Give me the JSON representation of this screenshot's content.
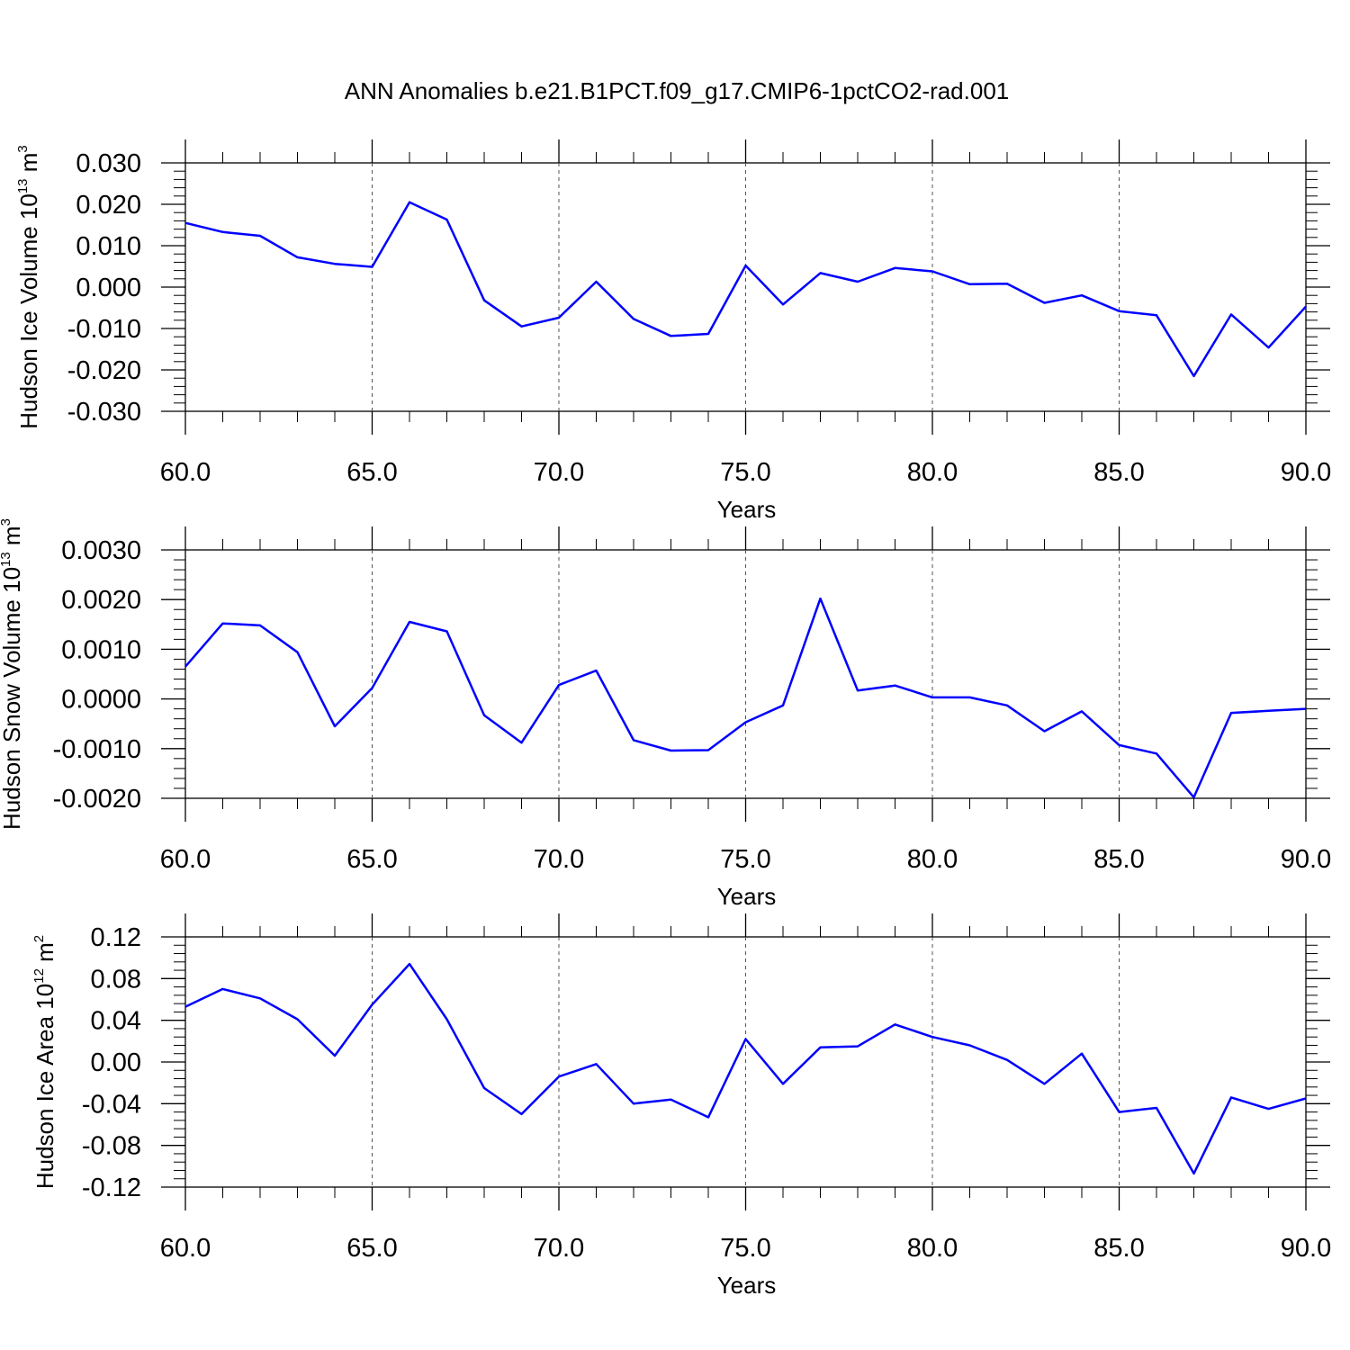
{
  "title": "ANN Anomalies b.e21.B1PCT.f09_g17.CMIP6-1pctCO2-rad.001",
  "colors": {
    "line": "#0000ff",
    "axis": "#000000",
    "grid": "#555555"
  },
  "chart_data": [
    {
      "type": "line",
      "ylabel_text": "Hudson Ice Volume 10",
      "ylabel_exp": "13",
      "ylabel_unit": "m",
      "ylabel_unit_exp": "3",
      "xlabel": "Years",
      "xlim": [
        60,
        90
      ],
      "ylim": [
        -0.03,
        0.03
      ],
      "xticks": [
        "60.0",
        "65.0",
        "70.0",
        "75.0",
        "80.0",
        "85.0",
        "90.0"
      ],
      "yticks": [
        "-0.030",
        "-0.020",
        "-0.010",
        "0.000",
        "0.010",
        "0.020",
        "0.030"
      ],
      "grid": "vertical dashed at major x ticks",
      "x": [
        60,
        61,
        62,
        63,
        64,
        65,
        66,
        67,
        68,
        69,
        70,
        71,
        72,
        73,
        74,
        75,
        76,
        77,
        78,
        79,
        80,
        81,
        82,
        83,
        84,
        85,
        86,
        87,
        88,
        89,
        90
      ],
      "y": [
        0.0155,
        0.0133,
        0.0124,
        0.0072,
        0.0056,
        0.0049,
        0.0205,
        0.0163,
        -0.0032,
        -0.0095,
        -0.0074,
        0.0013,
        -0.0077,
        -0.0118,
        -0.0113,
        0.0052,
        -0.0042,
        0.0034,
        0.0013,
        0.0046,
        0.0038,
        0.0007,
        0.0008,
        -0.0038,
        -0.002,
        -0.0058,
        -0.0068,
        -0.0215,
        -0.0066,
        -0.0146,
        -0.0047
      ]
    },
    {
      "type": "line",
      "ylabel_text": "Hudson Snow Volume 10",
      "ylabel_exp": "13",
      "ylabel_unit": "m",
      "ylabel_unit_exp": "3",
      "xlabel": "Years",
      "xlim": [
        60,
        90
      ],
      "ylim": [
        -0.002,
        0.003
      ],
      "xticks": [
        "60.0",
        "65.0",
        "70.0",
        "75.0",
        "80.0",
        "85.0",
        "90.0"
      ],
      "yticks": [
        "-0.0020",
        "-0.0010",
        "0.0000",
        "0.0010",
        "0.0020",
        "0.0030"
      ],
      "grid": "vertical dashed at major x ticks",
      "x": [
        60,
        61,
        62,
        63,
        64,
        65,
        66,
        67,
        68,
        69,
        70,
        71,
        72,
        73,
        74,
        75,
        76,
        77,
        78,
        79,
        80,
        81,
        82,
        83,
        84,
        85,
        86,
        87,
        88,
        89,
        90
      ],
      "y": [
        0.00065,
        0.00152,
        0.00148,
        0.00094,
        -0.00055,
        0.00022,
        0.00155,
        0.00136,
        -0.00033,
        -0.00088,
        0.00028,
        0.00057,
        -0.00083,
        -0.00104,
        -0.00103,
        -0.00047,
        -0.00013,
        0.00202,
        0.00017,
        0.00027,
        3e-05,
        3e-05,
        -0.00013,
        -0.00065,
        -0.00025,
        -0.00093,
        -0.0011,
        -0.00198,
        -0.00028,
        -0.00024,
        -0.0002
      ]
    },
    {
      "type": "line",
      "ylabel_text": "Hudson Ice Area 10",
      "ylabel_exp": "12",
      "ylabel_unit": "m",
      "ylabel_unit_exp": "2",
      "xlabel": "Years",
      "xlim": [
        60,
        90
      ],
      "ylim": [
        -0.12,
        0.12
      ],
      "xticks": [
        "60.0",
        "65.0",
        "70.0",
        "75.0",
        "80.0",
        "85.0",
        "90.0"
      ],
      "yticks": [
        "-0.12",
        "-0.08",
        "-0.04",
        "0.00",
        "0.04",
        "0.08",
        "0.12"
      ],
      "grid": "vertical dashed at major x ticks",
      "x": [
        60,
        61,
        62,
        63,
        64,
        65,
        66,
        67,
        68,
        69,
        70,
        71,
        72,
        73,
        74,
        75,
        76,
        77,
        78,
        79,
        80,
        81,
        82,
        83,
        84,
        85,
        86,
        87,
        88,
        89,
        90
      ],
      "y": [
        0.053,
        0.07,
        0.061,
        0.041,
        0.006,
        0.055,
        0.094,
        0.041,
        -0.025,
        -0.05,
        -0.014,
        -0.002,
        -0.04,
        -0.036,
        -0.053,
        0.022,
        -0.021,
        0.014,
        0.015,
        0.036,
        0.024,
        0.016,
        0.002,
        -0.021,
        0.008,
        -0.048,
        -0.044,
        -0.107,
        -0.034,
        -0.045,
        -0.035
      ]
    }
  ]
}
